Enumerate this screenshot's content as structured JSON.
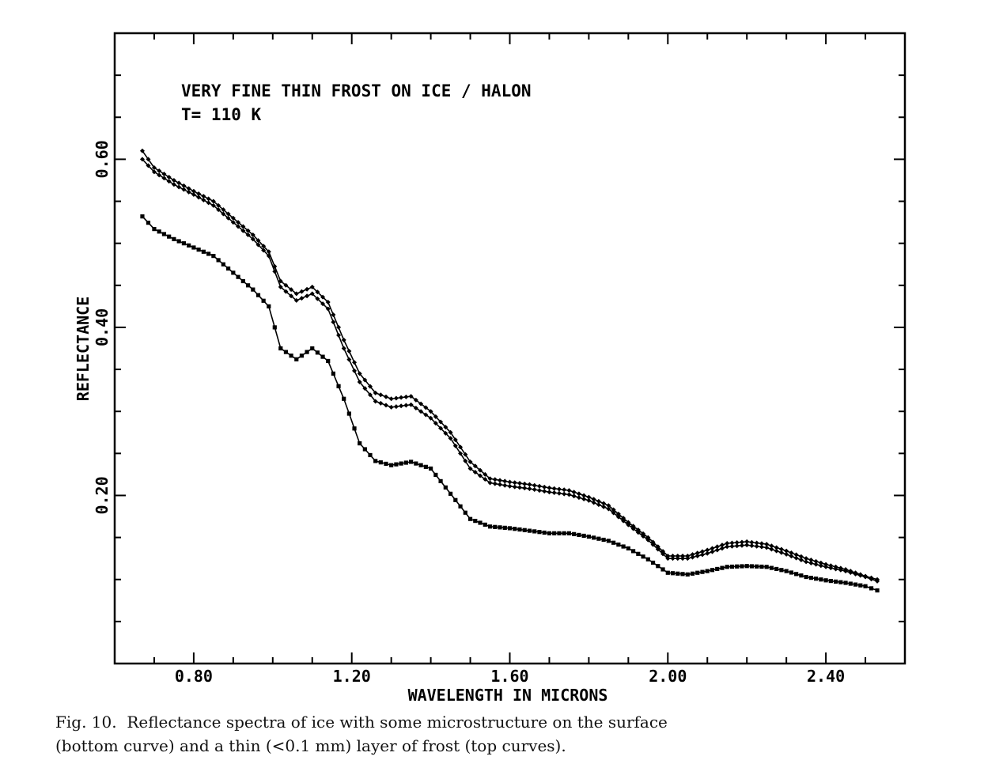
{
  "caption": {
    "line1": "Fig. 10.  Reflectance spectra of ice with some microstructure on the surface",
    "line2": "(bottom curve) and a thin (<0.1 mm) layer of frost (top curves)."
  },
  "chart_data": {
    "type": "line",
    "annotation_lines": [
      "VERY FINE THIN FROST ON ICE / HALON",
      "T= 110 K"
    ],
    "xlabel": "WAVELENGTH IN MICRONS",
    "ylabel": "REFLECTANCE",
    "xlim": [
      0.6,
      2.6
    ],
    "ylim": [
      0.0,
      0.75
    ],
    "xticks": [
      0.8,
      1.2,
      1.6,
      2.0,
      2.4
    ],
    "xtick_labels": [
      "0.80",
      "1.20",
      "1.60",
      "2.00",
      "2.40"
    ],
    "yticks": [
      0.2,
      0.4,
      0.6
    ],
    "ytick_labels": [
      "0.20",
      "0.40",
      "0.60"
    ],
    "grid": false,
    "series": [
      {
        "marker": "diamond",
        "x": [
          0.67,
          0.7,
          0.75,
          0.8,
          0.85,
          0.9,
          0.95,
          0.99,
          1.02,
          1.06,
          1.1,
          1.14,
          1.18,
          1.22,
          1.26,
          1.3,
          1.35,
          1.4,
          1.45,
          1.5,
          1.55,
          1.6,
          1.65,
          1.7,
          1.75,
          1.8,
          1.85,
          1.9,
          1.95,
          2.0,
          2.05,
          2.1,
          2.15,
          2.2,
          2.25,
          2.3,
          2.35,
          2.4,
          2.45,
          2.5,
          2.53
        ],
        "y": [
          0.61,
          0.59,
          0.575,
          0.562,
          0.55,
          0.53,
          0.51,
          0.49,
          0.455,
          0.44,
          0.448,
          0.43,
          0.385,
          0.345,
          0.322,
          0.315,
          0.318,
          0.3,
          0.275,
          0.24,
          0.22,
          0.216,
          0.213,
          0.209,
          0.206,
          0.198,
          0.188,
          0.168,
          0.15,
          0.128,
          0.128,
          0.135,
          0.143,
          0.145,
          0.142,
          0.134,
          0.125,
          0.118,
          0.112,
          0.104,
          0.1
        ]
      },
      {
        "marker": "diamond",
        "x": [
          0.67,
          0.7,
          0.75,
          0.8,
          0.85,
          0.9,
          0.95,
          0.99,
          1.02,
          1.06,
          1.1,
          1.14,
          1.18,
          1.22,
          1.26,
          1.3,
          1.35,
          1.4,
          1.45,
          1.5,
          1.55,
          1.6,
          1.65,
          1.7,
          1.75,
          1.8,
          1.85,
          1.9,
          1.95,
          2.0,
          2.05,
          2.1,
          2.15,
          2.2,
          2.25,
          2.3,
          2.35,
          2.4,
          2.45,
          2.5,
          2.53
        ],
        "y": [
          0.6,
          0.585,
          0.57,
          0.558,
          0.545,
          0.525,
          0.505,
          0.485,
          0.448,
          0.432,
          0.44,
          0.422,
          0.375,
          0.335,
          0.312,
          0.305,
          0.308,
          0.292,
          0.268,
          0.232,
          0.215,
          0.211,
          0.208,
          0.204,
          0.201,
          0.194,
          0.184,
          0.165,
          0.147,
          0.125,
          0.125,
          0.131,
          0.139,
          0.141,
          0.138,
          0.13,
          0.121,
          0.115,
          0.11,
          0.103,
          0.098
        ]
      },
      {
        "marker": "square",
        "x": [
          0.67,
          0.7,
          0.75,
          0.8,
          0.85,
          0.9,
          0.95,
          0.99,
          1.02,
          1.06,
          1.1,
          1.14,
          1.18,
          1.22,
          1.26,
          1.3,
          1.35,
          1.4,
          1.45,
          1.5,
          1.55,
          1.6,
          1.65,
          1.7,
          1.75,
          1.8,
          1.85,
          1.9,
          1.95,
          2.0,
          2.05,
          2.1,
          2.15,
          2.2,
          2.25,
          2.3,
          2.35,
          2.4,
          2.45,
          2.5,
          2.53
        ],
        "y": [
          0.532,
          0.517,
          0.505,
          0.495,
          0.485,
          0.465,
          0.445,
          0.425,
          0.375,
          0.362,
          0.375,
          0.36,
          0.315,
          0.262,
          0.241,
          0.236,
          0.24,
          0.232,
          0.202,
          0.172,
          0.163,
          0.161,
          0.158,
          0.155,
          0.155,
          0.151,
          0.146,
          0.137,
          0.124,
          0.108,
          0.106,
          0.11,
          0.115,
          0.116,
          0.115,
          0.11,
          0.103,
          0.099,
          0.096,
          0.092,
          0.087
        ]
      }
    ]
  }
}
